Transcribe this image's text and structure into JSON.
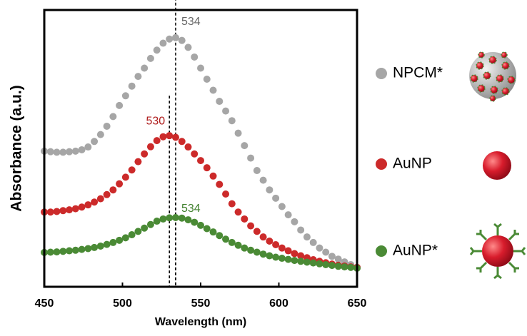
{
  "chart_data": {
    "type": "scatter",
    "x_label": "Wavelength (nm)",
    "y_label": "Absorbance (a.u.)",
    "x": [
      450,
      454,
      458,
      462,
      466,
      470,
      474,
      478,
      482,
      486,
      490,
      494,
      498,
      502,
      506,
      510,
      514,
      518,
      522,
      526,
      530,
      534,
      538,
      542,
      546,
      550,
      554,
      558,
      562,
      566,
      570,
      574,
      578,
      582,
      586,
      590,
      594,
      598,
      602,
      606,
      610,
      614,
      618,
      622,
      626,
      630,
      634,
      638,
      642,
      646,
      650
    ],
    "series": [
      {
        "name": "NPCM*",
        "color": "#a6a6a6",
        "values": [
          0.49,
          0.488,
          0.486,
          0.486,
          0.488,
          0.49,
          0.495,
          0.505,
          0.525,
          0.55,
          0.58,
          0.615,
          0.655,
          0.69,
          0.725,
          0.76,
          0.79,
          0.825,
          0.855,
          0.88,
          0.895,
          0.9,
          0.89,
          0.865,
          0.83,
          0.79,
          0.75,
          0.71,
          0.67,
          0.635,
          0.6,
          0.555,
          0.51,
          0.465,
          0.42,
          0.385,
          0.35,
          0.32,
          0.29,
          0.26,
          0.235,
          0.205,
          0.18,
          0.16,
          0.14,
          0.125,
          0.11,
          0.1,
          0.09,
          0.08,
          0.07
        ]
      },
      {
        "name": "AuNP",
        "color": "#cc2a2a",
        "values": [
          0.27,
          0.27,
          0.272,
          0.275,
          0.278,
          0.282,
          0.288,
          0.296,
          0.306,
          0.318,
          0.333,
          0.35,
          0.372,
          0.396,
          0.422,
          0.452,
          0.48,
          0.506,
          0.528,
          0.542,
          0.546,
          0.54,
          0.525,
          0.505,
          0.48,
          0.456,
          0.43,
          0.4,
          0.37,
          0.335,
          0.3,
          0.27,
          0.245,
          0.22,
          0.2,
          0.18,
          0.165,
          0.152,
          0.14,
          0.13,
          0.12,
          0.112,
          0.105,
          0.098,
          0.092,
          0.087,
          0.082,
          0.078,
          0.075,
          0.072,
          0.07
        ]
      },
      {
        "name": "AuNP*",
        "color": "#4a8a35",
        "values": [
          0.124,
          0.125,
          0.126,
          0.128,
          0.13,
          0.132,
          0.135,
          0.138,
          0.142,
          0.147,
          0.153,
          0.16,
          0.168,
          0.177,
          0.188,
          0.2,
          0.212,
          0.225,
          0.237,
          0.245,
          0.249,
          0.25,
          0.248,
          0.242,
          0.233,
          0.222,
          0.21,
          0.198,
          0.185,
          0.172,
          0.16,
          0.15,
          0.14,
          0.132,
          0.125,
          0.118,
          0.112,
          0.107,
          0.103,
          0.099,
          0.095,
          0.092,
          0.089,
          0.086,
          0.083,
          0.08,
          0.077,
          0.074,
          0.072,
          0.07,
          0.067
        ]
      }
    ],
    "annotations": [
      {
        "text": "534",
        "x": 534,
        "y": 0.9,
        "color": "#666666"
      },
      {
        "text": "530",
        "x": 530,
        "y": 0.546,
        "color": "#b01e1e"
      },
      {
        "text": "534",
        "x": 534,
        "y": 0.25,
        "color": "#3f7f2c"
      }
    ],
    "xlim": [
      450,
      650
    ],
    "xticks": [
      450,
      500,
      550,
      600,
      650
    ],
    "ylim": [
      0,
      1
    ]
  }
}
